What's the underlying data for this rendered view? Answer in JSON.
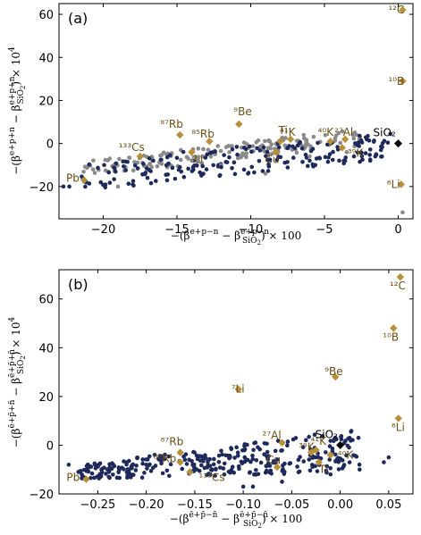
{
  "colors": {
    "navy": "#1f2a5c",
    "gray": "#8a8a8a",
    "gold": "#b8903a",
    "ref": "#000000",
    "label": "#6b4f12"
  },
  "chart_data": [
    {
      "type": "scatter",
      "panel_label": "(a)",
      "xlabel": "−(β^{e+p−n} − β^{e+p−n}_{SiO₂}) × 100",
      "ylabel": "−(β^{e+p+n} − β^{e+p+n}_{SiO₂}) × 10⁴",
      "xlim": [
        -23,
        1
      ],
      "ylim": [
        -35,
        65
      ],
      "xticks": [
        "−20",
        "−15",
        "−10",
        "−5",
        "0"
      ],
      "xtick_values": [
        -20,
        -15,
        -10,
        -5,
        0
      ],
      "yticks": [
        "−20",
        "0",
        "20",
        "40",
        "60"
      ],
      "ytick_values": [
        -20,
        0,
        20,
        40,
        60
      ],
      "reference": {
        "name": "SiO₂",
        "x": 0,
        "y": 0
      },
      "highlighted": [
        {
          "name": "¹²C",
          "x": 0.3,
          "y": 62
        },
        {
          "name": "¹⁰B",
          "x": 0.3,
          "y": 29
        },
        {
          "name": "⁶Li",
          "x": 0.2,
          "y": -19
        },
        {
          "name": "³⁹K",
          "x": -3.8,
          "y": -2
        },
        {
          "name": "⁴⁰K",
          "x": -4.6,
          "y": 1
        },
        {
          "name": "²⁷Al",
          "x": -3.6,
          "y": 2
        },
        {
          "name": "⁴¹K",
          "x": -7.3,
          "y": 2
        },
        {
          "name": "Ti",
          "x": -8.0,
          "y": 1
        },
        {
          "name": "Cu",
          "x": -8.3,
          "y": -4
        },
        {
          "name": "⁹Be",
          "x": -10.8,
          "y": 9
        },
        {
          "name": "⁸⁵Rb",
          "x": -12.8,
          "y": 1
        },
        {
          "name": "⁸⁷Rb",
          "x": -14.8,
          "y": 4
        },
        {
          "name": "⁷Li",
          "x": -14.0,
          "y": -4
        },
        {
          "name": "¹³³Cs",
          "x": -17.5,
          "y": -6
        },
        {
          "name": "Pb",
          "x": -21.3,
          "y": -17
        }
      ],
      "series": [
        {
          "color": "#8a8a8a",
          "points": [
            [
              -19.0,
              -20
            ],
            [
              0.3,
              -32
            ],
            [
              -9.0,
              -14
            ],
            [
              -12.0,
              -10
            ],
            [
              -14.0,
              -8
            ],
            [
              -6.0,
              -6
            ],
            [
              -3.5,
              -4
            ]
          ]
        },
        {
          "color": "#1f2a5c",
          "points": [
            [
              -22.7,
              -20
            ],
            [
              -22.3,
              -20
            ],
            [
              -18.0,
              -19
            ],
            [
              -17.0,
              -16
            ],
            [
              -12.0,
              -11
            ],
            [
              -13.0,
              -12
            ],
            [
              -4.0,
              -8
            ],
            [
              -3.0,
              -6
            ],
            [
              -1.5,
              -5
            ],
            [
              -6.0,
              -8
            ]
          ]
        }
      ],
      "bands": [
        {
          "color": "#8a8a8a",
          "count": 170,
          "x0": -21.5,
          "x1": -2.5,
          "y0": -12,
          "y1": 3,
          "ys0": 5,
          "ys1": 6,
          "spread": 1.4
        },
        {
          "color": "#1f2a5c",
          "count": 190,
          "x0": -21.5,
          "x1": -0.3,
          "y0": -15,
          "y1": -1,
          "ys0": 6,
          "ys1": 5,
          "spread": 2.4
        }
      ]
    },
    {
      "type": "scatter",
      "panel_label": "(b)",
      "xlabel": "−(β^{ē+p̄−n̄} − β^{ē+p̄−n̄}_{SiO₂}) × 100",
      "ylabel": "−(β^{ē+p̄+n̄} − β^{ē+p̄+n̄}_{SiO₂}) × 10⁴",
      "xlim": [
        -0.29,
        0.075
      ],
      "ylim": [
        -20,
        72
      ],
      "xticks": [
        "−0.25",
        "−0.20",
        "−0.15",
        "−0.10",
        "−0.05",
        "0.00",
        "0.05"
      ],
      "xtick_values": [
        -0.25,
        -0.2,
        -0.15,
        -0.1,
        -0.05,
        0.0,
        0.05
      ],
      "yticks": [
        "−20",
        "0",
        "20",
        "40",
        "60"
      ],
      "ytick_values": [
        -20,
        0,
        20,
        40,
        60
      ],
      "reference": {
        "name": "SiO₂",
        "x": 0,
        "y": 0
      },
      "highlighted": [
        {
          "name": "¹²C",
          "x": 0.062,
          "y": 69
        },
        {
          "name": "¹⁰B",
          "x": 0.055,
          "y": 48
        },
        {
          "name": "⁹Be",
          "x": -0.005,
          "y": 28
        },
        {
          "name": "⁷Li",
          "x": -0.105,
          "y": 23
        },
        {
          "name": "⁶Li",
          "x": 0.06,
          "y": 11
        },
        {
          "name": "²⁷Al",
          "x": -0.06,
          "y": 1
        },
        {
          "name": "³⁹K",
          "x": -0.03,
          "y": -3
        },
        {
          "name": "⁴¹K",
          "x": -0.025,
          "y": -2
        },
        {
          "name": "⁴⁰K",
          "x": -0.01,
          "y": -4
        },
        {
          "name": "Ti",
          "x": -0.022,
          "y": -7
        },
        {
          "name": "Cu",
          "x": -0.065,
          "y": -9
        },
        {
          "name": "⁸⁷Rb",
          "x": -0.165,
          "y": -3
        },
        {
          "name": "⁸⁵Rb",
          "x": -0.165,
          "y": -7
        },
        {
          "name": "¹³³Cs",
          "x": -0.155,
          "y": -11
        },
        {
          "name": "Pb",
          "x": -0.262,
          "y": -14
        }
      ],
      "series": [
        {
          "color": "#1f2a5c",
          "points": [
            [
              -0.28,
              -8
            ],
            [
              -0.27,
              -11
            ],
            [
              -0.1,
              -17
            ],
            [
              -0.09,
              -17
            ],
            [
              -0.06,
              -15
            ],
            [
              -0.01,
              -12
            ],
            [
              0.02,
              -10
            ],
            [
              0.045,
              -7
            ],
            [
              0.05,
              -5
            ],
            [
              -0.22,
              -7
            ],
            [
              -0.2,
              -8
            ]
          ]
        }
      ],
      "bands": [
        {
          "color": "#1f2a5c",
          "count": 330,
          "x0": -0.27,
          "x1": 0.02,
          "y0": -11,
          "y1": -2,
          "ys0": 2,
          "ys1": 6,
          "spread": 3.0
        }
      ]
    }
  ],
  "panels": {
    "a": {
      "label": "(a)",
      "x_axis_label": "−(β^{e+p−n} − β^{e+p−n}_{SiO₂}) × 100",
      "y_axis_label": "−(β^{e+p+n} − β^{e+p+n}_{SiO₂}) × 10⁴"
    },
    "b": {
      "label": "(b)",
      "x_axis_label": "−(β^{ē+p̄−n̄} − β^{ē+p̄−n̄}_{SiO₂}) × 100",
      "y_axis_label": "−(β^{ē+p̄+n̄} − β^{ē+p̄+n̄}_{SiO₂}) × 10⁴"
    }
  }
}
